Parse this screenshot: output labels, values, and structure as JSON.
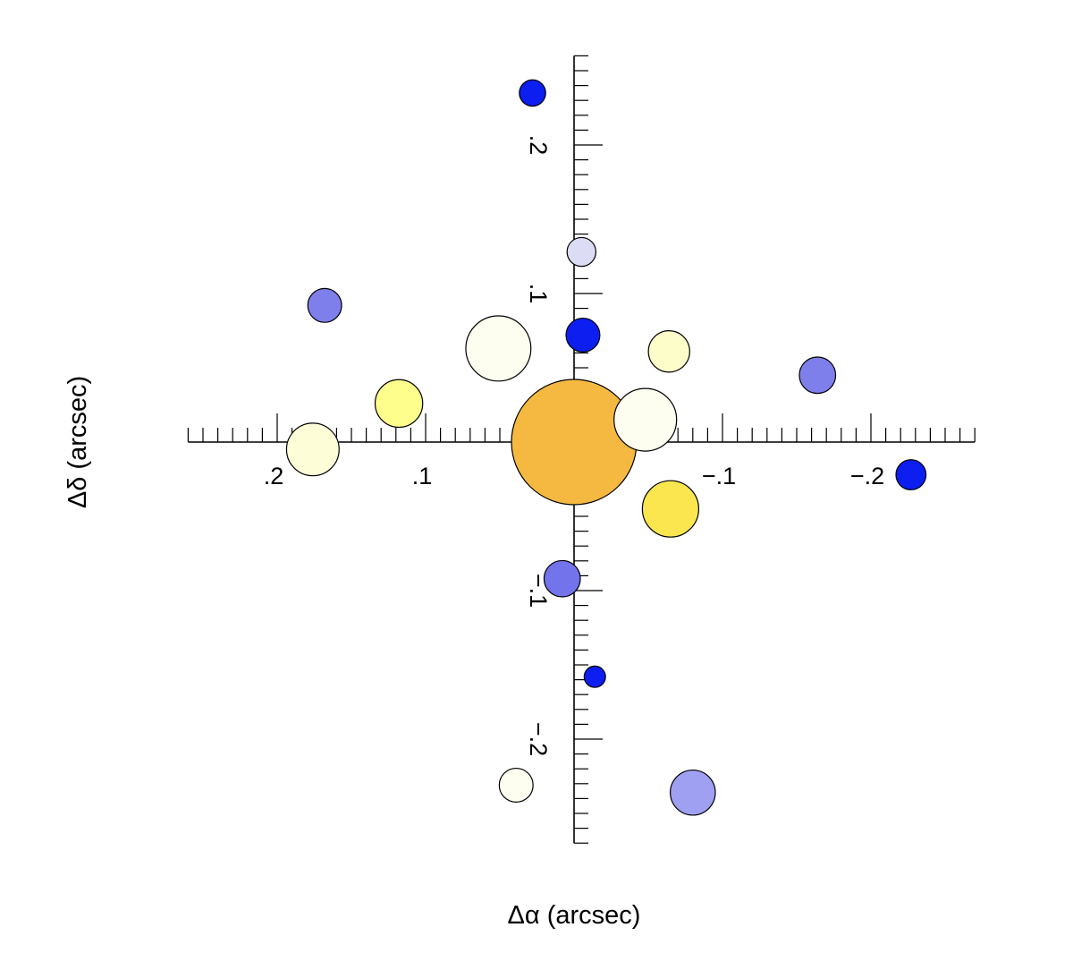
{
  "chart_data": {
    "type": "scatter",
    "title": "",
    "xlabel": "Δα (arcsec)",
    "ylabel": "Δδ (arcsec)",
    "x_reversed": true,
    "xlim": [
      0.26,
      -0.27
    ],
    "ylim": [
      -0.27,
      0.26
    ],
    "grid": false,
    "axes_through_origin": true,
    "x_ticks": [
      {
        "value": 0.2,
        "label": ".2"
      },
      {
        "value": 0.1,
        "label": ".1"
      },
      {
        "value": -0.1,
        "label": "−.1"
      },
      {
        "value": -0.2,
        "label": "−.2"
      }
    ],
    "y_ticks": [
      {
        "value": 0.2,
        "label": ".2"
      },
      {
        "value": 0.1,
        "label": ".1"
      },
      {
        "value": -0.1,
        "label": "−.1"
      },
      {
        "value": -0.2,
        "label": "−.2"
      }
    ],
    "points": [
      {
        "x": 0.0,
        "y": 0.0,
        "size": 1.0,
        "color": "#f5b942"
      },
      {
        "x": -0.048,
        "y": 0.015,
        "size": 0.5,
        "color": "#fdfdf0"
      },
      {
        "x": 0.051,
        "y": 0.063,
        "size": 0.52,
        "color": "#fdfdf0"
      },
      {
        "x": 0.176,
        "y": -0.005,
        "size": 0.42,
        "color": "#fdfdd8"
      },
      {
        "x": 0.118,
        "y": 0.026,
        "size": 0.38,
        "color": "#fefe8c"
      },
      {
        "x": -0.064,
        "y": 0.061,
        "size": 0.33,
        "color": "#fdfdca"
      },
      {
        "x": -0.065,
        "y": -0.045,
        "size": 0.45,
        "color": "#fbe650"
      },
      {
        "x": -0.005,
        "y": 0.128,
        "size": 0.23,
        "color": "#dcdcf5"
      },
      {
        "x": -0.006,
        "y": 0.072,
        "size": 0.27,
        "color": "#0d1ef0"
      },
      {
        "x": 0.168,
        "y": 0.092,
        "size": 0.27,
        "color": "#7f7fec"
      },
      {
        "x": -0.164,
        "y": 0.045,
        "size": 0.29,
        "color": "#7f7fec"
      },
      {
        "x": -0.227,
        "y": -0.022,
        "size": 0.24,
        "color": "#0d1ef0"
      },
      {
        "x": 0.028,
        "y": 0.235,
        "size": 0.21,
        "color": "#0d1ef0"
      },
      {
        "x": 0.008,
        "y": -0.092,
        "size": 0.29,
        "color": "#7373ec"
      },
      {
        "x": -0.014,
        "y": -0.158,
        "size": 0.17,
        "color": "#0d1ef0"
      },
      {
        "x": 0.039,
        "y": -0.231,
        "size": 0.27,
        "color": "#fdfdf0"
      },
      {
        "x": -0.08,
        "y": -0.236,
        "size": 0.36,
        "color": "#a0a0f2"
      }
    ]
  }
}
